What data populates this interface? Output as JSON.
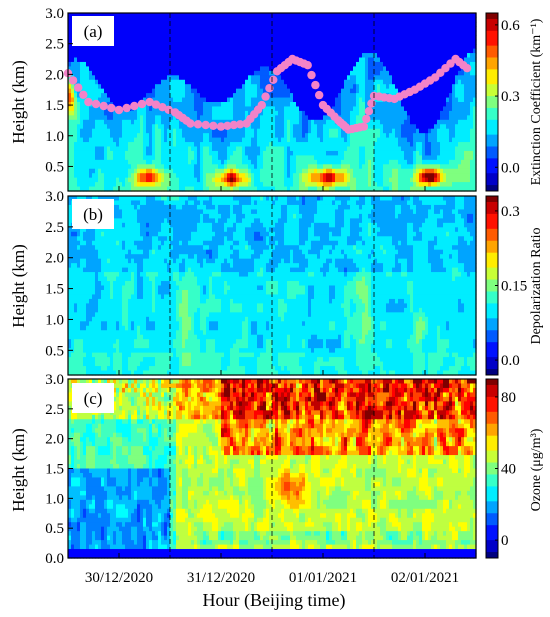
{
  "chart_data": [
    {
      "type": "heatmap",
      "panel_label": "(a)",
      "ylabel": "Height (km)",
      "yticks": [
        "0.5",
        "1.0",
        "1.5",
        "2.0",
        "2.5",
        "3.0"
      ],
      "ylim": [
        0.1,
        3.0
      ],
      "colorbar": {
        "title": "Extinction Coefficient (km⁻¹)",
        "range": [
          -0.1,
          0.65
        ],
        "ticks": [
          "0.0",
          "0.3",
          "0.6"
        ],
        "tick_values": [
          0.0,
          0.3,
          0.6
        ]
      },
      "overlay": {
        "type": "scatter",
        "marker_color": "#f383c8",
        "note_values_km": [
          2.02,
          1.55,
          1.42,
          1.55,
          1.38,
          1.2,
          1.15,
          1.2,
          1.5,
          2.05,
          2.25,
          2.15,
          1.5,
          1.25,
          1.1,
          1.15,
          1.65,
          1.6,
          1.75,
          1.95,
          2.25,
          2.05
        ],
        "note_x_days": [
          0.0,
          0.2,
          0.5,
          0.8,
          1.05,
          1.2,
          1.5,
          1.75,
          1.9,
          2.05,
          2.2,
          2.35,
          2.5,
          2.65,
          2.75,
          2.9,
          3.0,
          3.2,
          3.4,
          3.6,
          3.8,
          3.95
        ]
      }
    },
    {
      "type": "heatmap",
      "panel_label": "(b)",
      "ylabel": "Height (km)",
      "yticks": [
        "0.5",
        "1.0",
        "1.5",
        "2.0",
        "2.5",
        "3.0"
      ],
      "ylim": [
        0.1,
        3.0
      ],
      "colorbar": {
        "title": "Depolarization Ratio",
        "range": [
          -0.03,
          0.33
        ],
        "ticks": [
          "0.0",
          "0.15",
          "0.3"
        ],
        "tick_values": [
          0.0,
          0.15,
          0.3
        ]
      }
    },
    {
      "type": "heatmap",
      "panel_label": "(c)",
      "ylabel": "Height (km)",
      "yticks": [
        "0.0",
        "0.5",
        "1.0",
        "1.5",
        "2.0",
        "2.5",
        "3.0"
      ],
      "ylim": [
        0.0,
        3.0
      ],
      "colorbar": {
        "title": "Ozone (μg/m³)",
        "range": [
          -10,
          90
        ],
        "ticks": [
          "0",
          "40",
          "80"
        ],
        "tick_values": [
          0,
          40,
          80
        ]
      }
    }
  ],
  "x_axis": {
    "title": "Hour (Beijing time)",
    "tick_labels": [
      "30/12/2020",
      "31/12/2020",
      "01/01/2021",
      "02/01/2021"
    ],
    "tick_positions_days": [
      0.5,
      1.5,
      2.5,
      3.5
    ],
    "day_boundaries_days": [
      1,
      2,
      3
    ],
    "range_days": [
      0,
      4
    ]
  },
  "colormap": [
    "#00007f",
    "#0000ff",
    "#007fff",
    "#00ffff",
    "#7fff7f",
    "#ffff00",
    "#ff7f00",
    "#ff0000",
    "#7f0000"
  ]
}
